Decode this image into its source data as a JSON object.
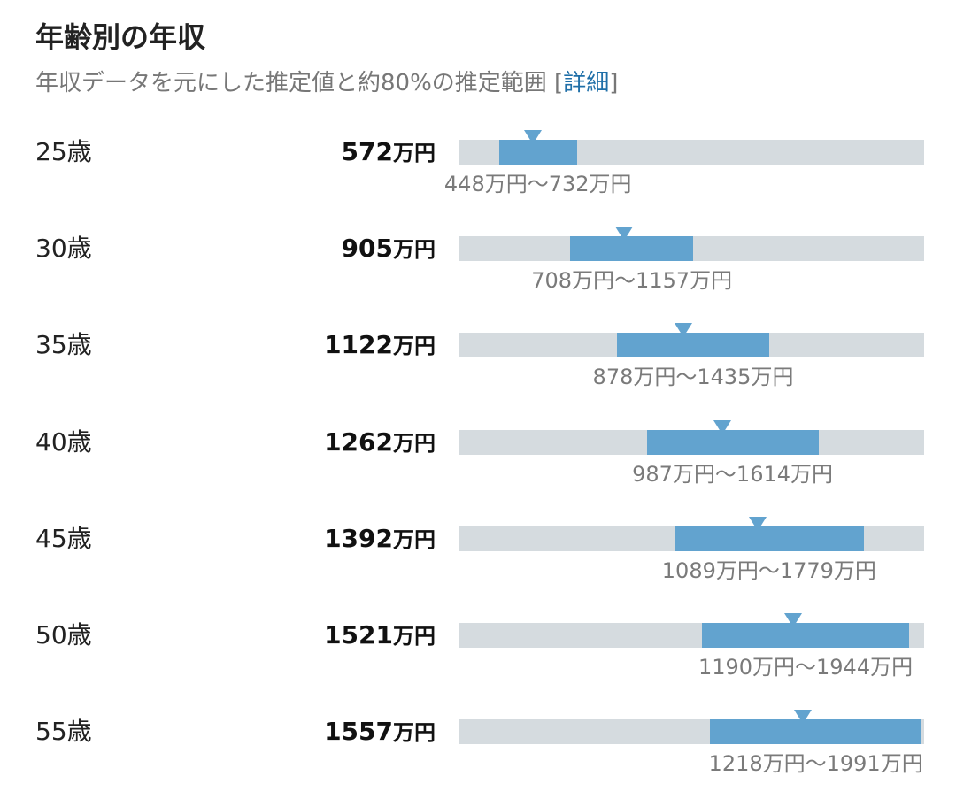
{
  "title": "年齢別の年収",
  "subtitle_prefix": "年収データを元にした推定値と約80%の推定範囲 [",
  "subtitle_link": "詳細",
  "subtitle_suffix": "]",
  "colors": {
    "fill": "#62a3cf",
    "track": "#d5dbdf",
    "link": "#1f6fa8"
  },
  "chart_data": {
    "type": "bar",
    "unit": "万円",
    "range_separator": "〜",
    "xlim": [
      300,
      2000
    ],
    "categories": [
      "25歳",
      "30歳",
      "35歳",
      "40歳",
      "45歳",
      "50歳",
      "55歳"
    ],
    "values": [
      572,
      905,
      1122,
      1262,
      1392,
      1521,
      1557
    ],
    "range_low": [
      448,
      708,
      878,
      987,
      1089,
      1190,
      1218
    ],
    "range_high": [
      732,
      1157,
      1435,
      1614,
      1779,
      1944,
      1991
    ]
  }
}
